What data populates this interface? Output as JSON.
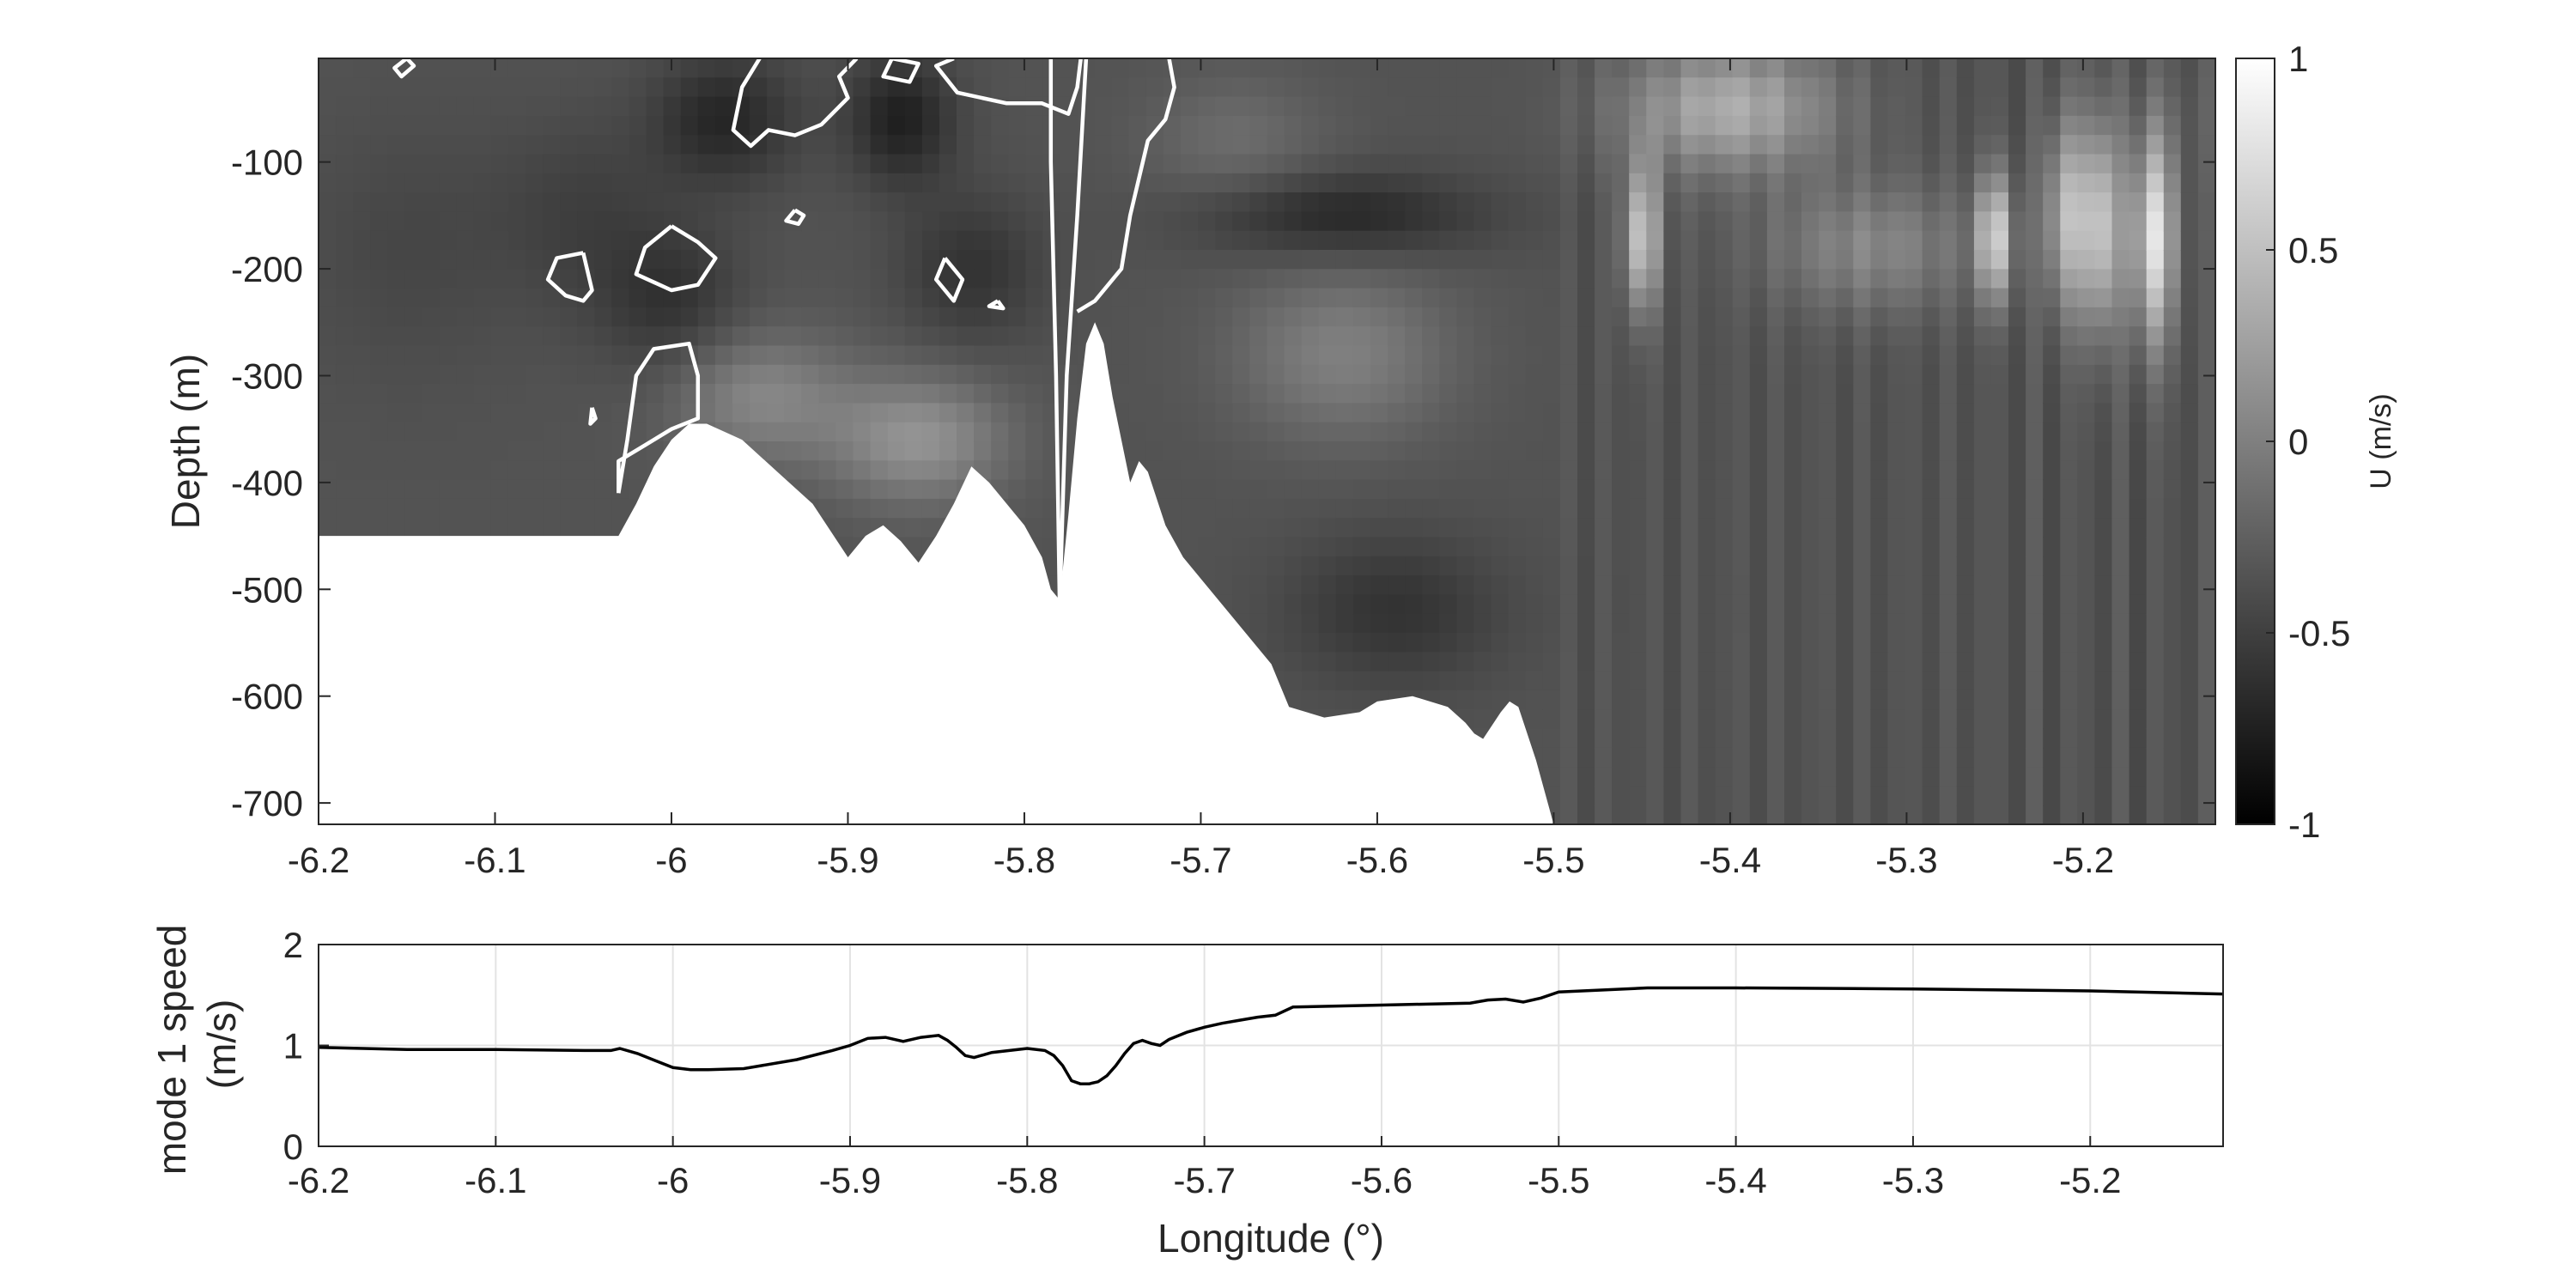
{
  "figure": {
    "background": "#ffffff"
  },
  "chart_data": [
    {
      "type": "heatmap",
      "title": "",
      "xlabel": "",
      "ylabel": "Depth (m)",
      "xlim": [
        -6.2,
        -5.125
      ],
      "ylim": [
        -720,
        -3
      ],
      "xticks": [
        -6.2,
        -6.1,
        -6.0,
        -5.9,
        -5.8,
        -5.7,
        -5.6,
        -5.5,
        -5.4,
        -5.3,
        -5.2
      ],
      "xtick_labels": [
        "-6.2",
        "-6.1",
        "-6",
        "-5.9",
        "-5.8",
        "-5.7",
        "-5.6",
        "-5.5",
        "-5.4",
        "-5.3",
        "-5.2"
      ],
      "yticks": [
        -100,
        -200,
        -300,
        -400,
        -500,
        -600,
        -700
      ],
      "ytick_labels": [
        "-100",
        "-200",
        "-300",
        "-400",
        "-500",
        "-600",
        "-700"
      ],
      "colormap": "gray",
      "colorbar": {
        "label": "U (m/s)",
        "range": [
          -1,
          1
        ],
        "ticks": [
          1,
          0.5,
          0,
          -0.5,
          -1
        ],
        "tick_labels": [
          "1",
          "0.5",
          "0",
          "-0.5",
          "-1"
        ]
      },
      "contour_level": -0.8,
      "contour_color": "#ffffff",
      "bottom_fill_color": "#ffffff",
      "bathymetry": {
        "x": [
          -6.2,
          -6.03,
          -6.02,
          -6.01,
          -6.0,
          -5.99,
          -5.98,
          -5.96,
          -5.94,
          -5.92,
          -5.9,
          -5.89,
          -5.88,
          -5.87,
          -5.86,
          -5.85,
          -5.84,
          -5.83,
          -5.82,
          -5.8,
          -5.79,
          -5.785,
          -5.78,
          -5.775,
          -5.77,
          -5.765,
          -5.76,
          -5.755,
          -5.75,
          -5.74,
          -5.735,
          -5.73,
          -5.72,
          -5.71,
          -5.7,
          -5.68,
          -5.66,
          -5.65,
          -5.63,
          -5.61,
          -5.6,
          -5.58,
          -5.56,
          -5.55,
          -5.545,
          -5.54,
          -5.53,
          -5.525,
          -5.52,
          -5.51,
          -5.5,
          -5.125
        ],
        "depth": [
          -450,
          -450,
          -420,
          -385,
          -360,
          -345,
          -345,
          -360,
          -390,
          -420,
          -470,
          -450,
          -440,
          -455,
          -475,
          -450,
          -420,
          -385,
          -400,
          -440,
          -470,
          -500,
          -510,
          -430,
          -340,
          -270,
          -250,
          -270,
          -320,
          -400,
          -380,
          -390,
          -440,
          -470,
          -490,
          -530,
          -570,
          -610,
          -620,
          -615,
          -605,
          -600,
          -610,
          -625,
          -635,
          -640,
          -615,
          -605,
          -610,
          -660,
          -720,
          -720
        ]
      },
      "value_field": {
        "background": -0.35,
        "blobs": [
          {
            "x": -6.15,
            "z": -180,
            "sx": 0.06,
            "sz": 120,
            "v": -0.45
          },
          {
            "x": -6.05,
            "z": -150,
            "sx": 0.05,
            "sz": 90,
            "v": -0.5
          },
          {
            "x": -6.0,
            "z": -230,
            "sx": 0.04,
            "sz": 70,
            "v": -0.6
          },
          {
            "x": -5.97,
            "z": -60,
            "sx": 0.04,
            "sz": 60,
            "v": -0.7
          },
          {
            "x": -5.87,
            "z": -60,
            "sx": 0.03,
            "sz": 60,
            "v": -0.75
          },
          {
            "x": -5.83,
            "z": -200,
            "sx": 0.04,
            "sz": 70,
            "v": -0.6
          },
          {
            "x": -5.95,
            "z": -320,
            "sx": 0.05,
            "sz": 60,
            "v": 0.05
          },
          {
            "x": -5.86,
            "z": -360,
            "sx": 0.05,
            "sz": 60,
            "v": 0.15
          },
          {
            "x": -5.68,
            "z": -80,
            "sx": 0.05,
            "sz": 60,
            "v": -0.15
          },
          {
            "x": -5.62,
            "z": -150,
            "sx": 0.08,
            "sz": 40,
            "v": -0.7
          },
          {
            "x": -5.62,
            "z": -280,
            "sx": 0.06,
            "sz": 80,
            "v": 0.0
          },
          {
            "x": -5.59,
            "z": -520,
            "sx": 0.06,
            "sz": 70,
            "v": -0.6
          },
          {
            "x": -5.45,
            "z": -170,
            "sx": 0.01,
            "sz": 70,
            "v": 0.55
          },
          {
            "x": -5.4,
            "z": -50,
            "sx": 0.06,
            "sz": 60,
            "v": 0.35
          },
          {
            "x": -5.32,
            "z": -180,
            "sx": 0.06,
            "sz": 60,
            "v": 0.05
          },
          {
            "x": -5.25,
            "z": -170,
            "sx": 0.01,
            "sz": 60,
            "v": 0.55
          },
          {
            "x": -5.21,
            "z": -150,
            "sx": 0.012,
            "sz": 90,
            "v": 0.4
          },
          {
            "x": -5.19,
            "z": -160,
            "sx": 0.012,
            "sz": 100,
            "v": 0.55
          },
          {
            "x": -5.16,
            "z": -170,
            "sx": 0.012,
            "sz": 100,
            "v": 0.75
          },
          {
            "x": -5.135,
            "z": -60,
            "sx": 0.02,
            "sz": 60,
            "v": -0.3
          }
        ]
      },
      "contours": [
        [
          [
            -6.15,
            -3
          ],
          [
            -6.157,
            -12
          ],
          [
            -6.153,
            -20
          ],
          [
            -6.146,
            -10
          ],
          [
            -6.15,
            -3
          ]
        ],
        [
          [
            -6.05,
            -185
          ],
          [
            -6.065,
            -190
          ],
          [
            -6.07,
            -210
          ],
          [
            -6.06,
            -225
          ],
          [
            -6.05,
            -230
          ],
          [
            -6.045,
            -220
          ],
          [
            -6.05,
            -185
          ]
        ],
        [
          [
            -6.0,
            -160
          ],
          [
            -6.015,
            -180
          ],
          [
            -6.02,
            -205
          ],
          [
            -6.0,
            -220
          ],
          [
            -5.985,
            -215
          ],
          [
            -5.975,
            -190
          ],
          [
            -5.985,
            -175
          ],
          [
            -6.0,
            -160
          ]
        ],
        [
          [
            -6.045,
            -330
          ],
          [
            -6.043,
            -340
          ],
          [
            -6.046,
            -345
          ],
          [
            -6.045,
            -330
          ]
        ],
        [
          [
            -6.03,
            -410
          ],
          [
            -6.03,
            -380
          ],
          [
            -6.015,
            -365
          ],
          [
            -6.0,
            -350
          ],
          [
            -5.985,
            -340
          ],
          [
            -5.985,
            -300
          ],
          [
            -5.99,
            -270
          ],
          [
            -6.01,
            -275
          ],
          [
            -6.02,
            -300
          ],
          [
            -6.025,
            -360
          ],
          [
            -6.03,
            -410
          ]
        ],
        [
          [
            -5.93,
            -145
          ],
          [
            -5.935,
            -155
          ],
          [
            -5.928,
            -158
          ],
          [
            -5.925,
            -150
          ],
          [
            -5.93,
            -145
          ]
        ],
        [
          [
            -5.845,
            -190
          ],
          [
            -5.85,
            -210
          ],
          [
            -5.84,
            -230
          ],
          [
            -5.835,
            -210
          ],
          [
            -5.845,
            -190
          ]
        ],
        [
          [
            -5.815,
            -230
          ],
          [
            -5.82,
            -235
          ],
          [
            -5.812,
            -237
          ],
          [
            -5.815,
            -230
          ]
        ],
        [
          [
            -5.95,
            -3
          ],
          [
            -5.96,
            -30
          ],
          [
            -5.965,
            -70
          ],
          [
            -5.955,
            -85
          ],
          [
            -5.945,
            -70
          ],
          [
            -5.93,
            -75
          ],
          [
            -5.915,
            -65
          ],
          [
            -5.9,
            -40
          ],
          [
            -5.905,
            -20
          ],
          [
            -5.895,
            -3
          ]
        ],
        [
          [
            -5.875,
            -3
          ],
          [
            -5.88,
            -20
          ],
          [
            -5.865,
            -25
          ],
          [
            -5.86,
            -8
          ],
          [
            -5.875,
            -3
          ]
        ],
        [
          [
            -5.84,
            -3
          ],
          [
            -5.85,
            -10
          ],
          [
            -5.838,
            -35
          ],
          [
            -5.81,
            -45
          ],
          [
            -5.79,
            -45
          ],
          [
            -5.775,
            -55
          ],
          [
            -5.77,
            -30
          ],
          [
            -5.768,
            -3
          ]
        ],
        [
          [
            -5.785,
            -3
          ],
          [
            -5.785,
            -100
          ],
          [
            -5.782,
            -300
          ],
          [
            -5.78,
            -515
          ],
          [
            -5.776,
            -300
          ],
          [
            -5.77,
            -150
          ],
          [
            -5.765,
            -3
          ]
        ],
        [
          [
            -5.77,
            -240
          ],
          [
            -5.76,
            -230
          ],
          [
            -5.745,
            -200
          ],
          [
            -5.74,
            -150
          ],
          [
            -5.73,
            -80
          ],
          [
            -5.72,
            -60
          ],
          [
            -5.715,
            -30
          ],
          [
            -5.718,
            -3
          ]
        ]
      ]
    },
    {
      "type": "line",
      "title": "",
      "xlabel": "Longitude (°)",
      "ylabel": "mode 1 speed\n(m/s)",
      "xlim": [
        -6.2,
        -5.125
      ],
      "ylim": [
        0,
        2
      ],
      "grid": true,
      "xticks": [
        -6.2,
        -6.1,
        -6.0,
        -5.9,
        -5.8,
        -5.7,
        -5.6,
        -5.5,
        -5.4,
        -5.3,
        -5.2
      ],
      "xtick_labels": [
        "-6.2",
        "-6.1",
        "-6",
        "-5.9",
        "-5.8",
        "-5.7",
        "-5.6",
        "-5.5",
        "-5.4",
        "-5.3",
        "-5.2"
      ],
      "yticks": [
        0,
        1,
        2
      ],
      "ytick_labels": [
        "0",
        "1",
        "2"
      ],
      "series": [
        {
          "color": "#000000",
          "x": [
            -6.2,
            -6.15,
            -6.1,
            -6.05,
            -6.035,
            -6.03,
            -6.02,
            -6.01,
            -6.0,
            -5.99,
            -5.98,
            -5.96,
            -5.95,
            -5.93,
            -5.91,
            -5.9,
            -5.89,
            -5.88,
            -5.87,
            -5.86,
            -5.85,
            -5.845,
            -5.84,
            -5.835,
            -5.83,
            -5.82,
            -5.8,
            -5.79,
            -5.785,
            -5.78,
            -5.775,
            -5.77,
            -5.765,
            -5.76,
            -5.755,
            -5.75,
            -5.745,
            -5.74,
            -5.735,
            -5.73,
            -5.725,
            -5.72,
            -5.71,
            -5.7,
            -5.69,
            -5.68,
            -5.67,
            -5.66,
            -5.65,
            -5.6,
            -5.55,
            -5.54,
            -5.53,
            -5.52,
            -5.51,
            -5.5,
            -5.45,
            -5.4,
            -5.3,
            -5.2,
            -5.125
          ],
          "y": [
            0.98,
            0.96,
            0.96,
            0.95,
            0.95,
            0.97,
            0.92,
            0.85,
            0.78,
            0.76,
            0.76,
            0.77,
            0.8,
            0.86,
            0.95,
            1.0,
            1.07,
            1.08,
            1.04,
            1.08,
            1.1,
            1.05,
            0.98,
            0.9,
            0.88,
            0.93,
            0.97,
            0.95,
            0.9,
            0.8,
            0.65,
            0.62,
            0.62,
            0.64,
            0.7,
            0.8,
            0.92,
            1.02,
            1.05,
            1.02,
            1.0,
            1.06,
            1.13,
            1.18,
            1.22,
            1.25,
            1.28,
            1.3,
            1.38,
            1.4,
            1.42,
            1.45,
            1.46,
            1.43,
            1.47,
            1.53,
            1.57,
            1.57,
            1.56,
            1.54,
            1.51
          ]
        }
      ]
    }
  ]
}
